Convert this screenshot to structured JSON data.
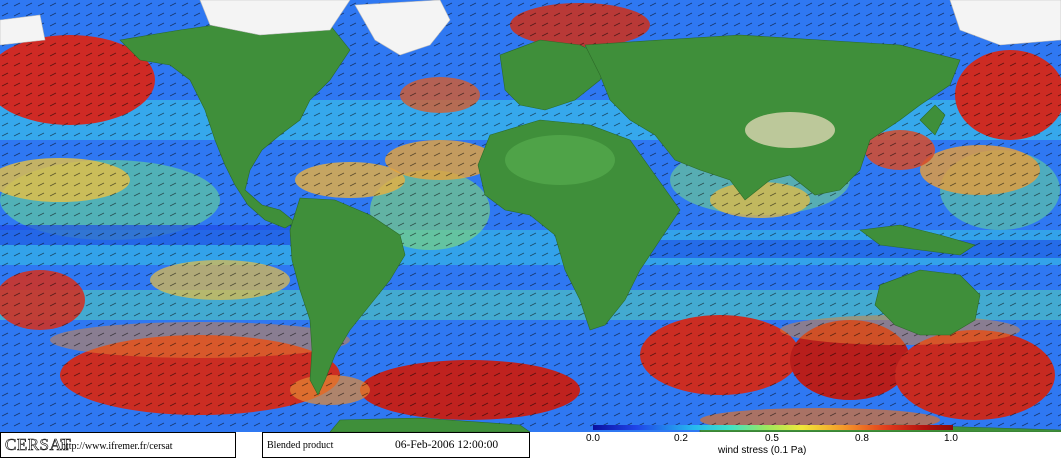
{
  "brand": {
    "logo": "CERSAT",
    "url": "http://www.ifremer.fr/cersat"
  },
  "product": {
    "label": "Blended product",
    "datetime": "06-Feb-2006 12:00:00"
  },
  "scale": {
    "title": "wind stress (0.1 Pa)",
    "ticks": [
      "0.0",
      "0.2",
      "0.5",
      "0.8",
      "1.0"
    ],
    "tick_values": [
      0.0,
      0.2,
      0.5,
      0.8,
      1.0
    ],
    "colors": [
      "#0a10a0",
      "#2a6cf0",
      "#38d2f0",
      "#a8ea58",
      "#f4dd35",
      "#f08a28",
      "#dc2a18",
      "#a00a0a"
    ]
  },
  "land_color": "#3f8f3a",
  "ice_color": "#ffffff"
}
